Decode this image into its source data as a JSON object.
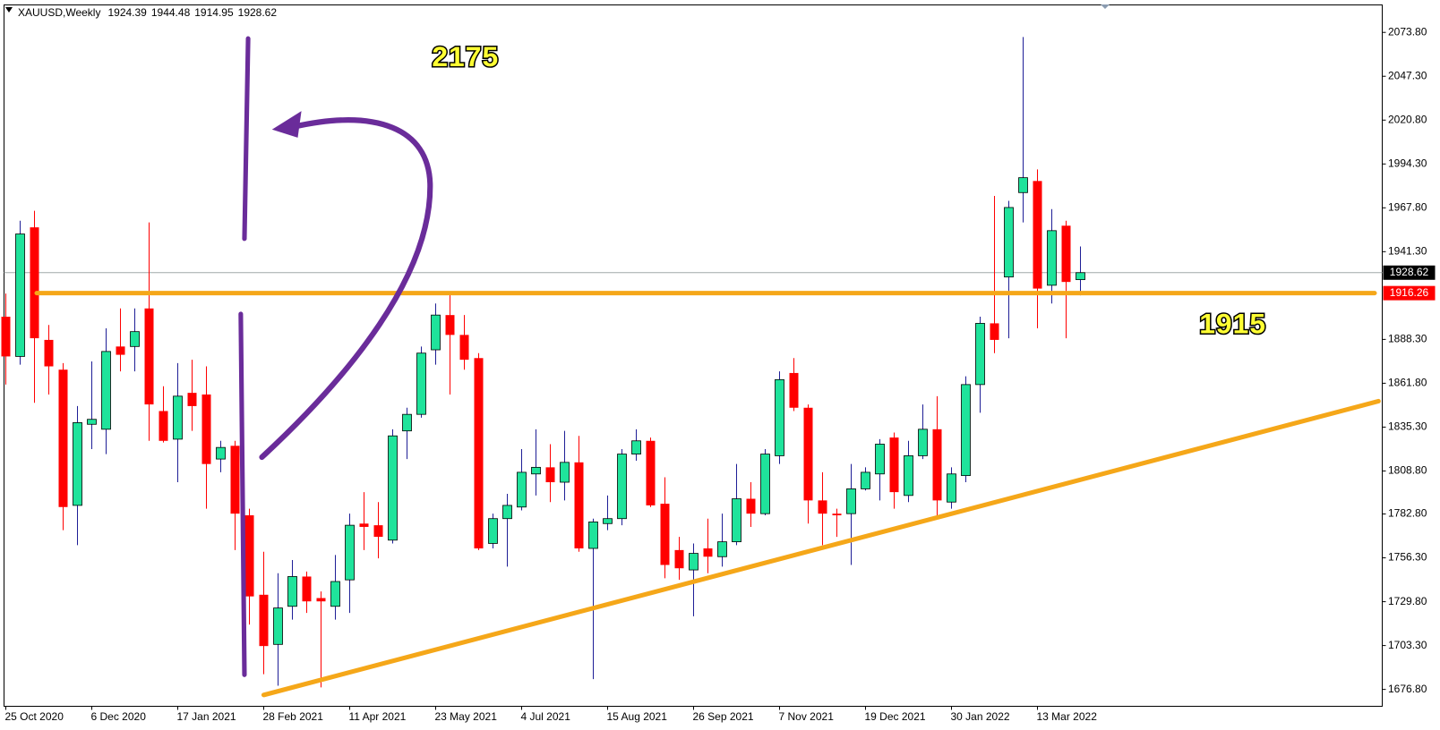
{
  "chart_data": {
    "type": "candlestick",
    "title": "XAUUSD,Weekly",
    "categories": [
      "25 Oct 2020",
      null,
      null,
      null,
      null,
      null,
      "6 Dec 2020",
      null,
      null,
      null,
      null,
      null,
      "17 Jan 2021",
      null,
      null,
      null,
      null,
      null,
      "28 Feb 2021",
      null,
      null,
      null,
      null,
      null,
      "11 Apr 2021",
      null,
      null,
      null,
      null,
      null,
      "23 May 2021",
      null,
      null,
      null,
      null,
      null,
      "4 Jul 2021",
      null,
      null,
      null,
      null,
      null,
      "15 Aug 2021",
      null,
      null,
      null,
      null,
      null,
      "26 Sep 2021",
      null,
      null,
      null,
      null,
      null,
      "7 Nov 2021",
      null,
      null,
      null,
      null,
      null,
      "19 Dec 2021",
      null,
      null,
      null,
      null,
      null,
      "30 Jan 2022",
      null,
      null,
      null,
      null,
      null,
      "13 Mar 2022",
      null,
      null,
      null
    ],
    "open": [
      1902,
      1878,
      1956,
      1888,
      1870,
      1788,
      1837,
      1834,
      1884,
      1884,
      1907,
      1845,
      1828,
      1856,
      1855,
      1816,
      1824,
      1782,
      1734,
      1704,
      1727,
      1745,
      1732,
      1727,
      1743,
      1777,
      1776,
      1767,
      1833,
      1843,
      1882,
      1903,
      1891,
      1877,
      1765,
      1780,
      1787,
      1807,
      1811,
      1802,
      1814,
      1762,
      1777,
      1780,
      1819,
      1827,
      1789,
      1761,
      1749,
      1762,
      1757,
      1766,
      1792,
      1783,
      1818,
      1868,
      1847,
      1791,
      1783,
      1783,
      1798,
      1807,
      1829,
      1794,
      1818,
      1834,
      1790,
      1806,
      1861,
      1898,
      1926,
      1977,
      1984,
      1921,
      1957,
      1924.39
    ],
    "high": [
      1916,
      1960,
      1966,
      1897,
      1874,
      1848,
      1875,
      1895,
      1907,
      1907,
      1959,
      1860,
      1874,
      1876,
      1872,
      1827,
      1827,
      1786,
      1760,
      1747,
      1755,
      1748,
      1736,
      1758,
      1783,
      1796,
      1790,
      1834,
      1847,
      1884,
      1910,
      1916,
      1903,
      1880,
      1783,
      1795,
      1822,
      1834,
      1825,
      1833,
      1830,
      1780,
      1794,
      1822,
      1834,
      1829,
      1805,
      1769,
      1765,
      1780,
      1783,
      1813,
      1802,
      1822,
      1869,
      1877,
      1849,
      1808,
      1786,
      1813,
      1811,
      1828,
      1832,
      1827,
      1849,
      1854,
      1811,
      1866,
      1902,
      1975,
      1972,
      2071,
      1991,
      1967,
      1960,
      1944.48
    ],
    "low": [
      1861,
      1873,
      1850,
      1855,
      1773,
      1764,
      1822,
      1819,
      1869,
      1869,
      1827,
      1826,
      1802,
      1833,
      1786,
      1808,
      1761,
      1716,
      1686,
      1679,
      1719,
      1723,
      1678,
      1719,
      1723,
      1761,
      1756,
      1765,
      1816,
      1841,
      1873,
      1855,
      1870,
      1761,
      1762,
      1751,
      1785,
      1794,
      1790,
      1791,
      1760,
      1683,
      1773,
      1776,
      1815,
      1787,
      1744,
      1743,
      1721,
      1747,
      1751,
      1764,
      1775,
      1782,
      1813,
      1845,
      1777,
      1764,
      1769,
      1752,
      1797,
      1791,
      1786,
      1790,
      1816,
      1782,
      1786,
      1802,
      1844,
      1880,
      1889,
      1959,
      1895,
      1910,
      1889,
      1914.95
    ],
    "close": [
      1878,
      1952,
      1889,
      1872,
      1787,
      1838,
      1840,
      1881,
      1879,
      1893,
      1849,
      1827,
      1854,
      1848,
      1813,
      1823,
      1783,
      1733,
      1703,
      1726,
      1745,
      1730,
      1730,
      1742,
      1776,
      1775,
      1769,
      1830,
      1843,
      1880,
      1903,
      1891,
      1876,
      1762,
      1780,
      1788,
      1808,
      1811,
      1802,
      1814,
      1762,
      1778,
      1780,
      1819,
      1827,
      1788,
      1752,
      1750,
      1759,
      1757,
      1766,
      1792,
      1783,
      1819,
      1864,
      1847,
      1791,
      1783,
      1782,
      1798,
      1808,
      1825,
      1796,
      1818,
      1834,
      1791,
      1807,
      1861,
      1898,
      1888,
      1968,
      1986,
      1919,
      1954,
      1923,
      1928.62
    ],
    "up_color": "#1fe39b",
    "down_color": "#ff0000",
    "up_wick_color": "#1e1e96",
    "ylim": [
      1666.6,
      2090.4
    ],
    "yticks": [
      {
        "value": 1676.8,
        "label": "1676.80"
      },
      {
        "value": 1703.3,
        "label": "1703.30"
      },
      {
        "value": 1729.8,
        "label": "1729.80"
      },
      {
        "value": 1756.3,
        "label": "1756.30"
      },
      {
        "value": 1782.8,
        "label": "1782.80"
      },
      {
        "value": 1808.8,
        "label": "1808.80"
      },
      {
        "value": 1835.3,
        "label": "1835.30"
      },
      {
        "value": 1861.8,
        "label": "1861.80"
      },
      {
        "value": 1888.3,
        "label": "1888.30"
      },
      {
        "value": 1941.3,
        "label": "1941.30"
      },
      {
        "value": 1967.8,
        "label": "1967.80"
      },
      {
        "value": 1994.3,
        "label": "1994.30"
      },
      {
        "value": 2020.8,
        "label": "2020.80"
      },
      {
        "value": 2047.3,
        "label": "2047.30"
      },
      {
        "value": 2073.8,
        "label": "2073.80"
      }
    ],
    "price_line": 1916.26,
    "annotations": [
      "2175",
      "1915"
    ]
  }
}
